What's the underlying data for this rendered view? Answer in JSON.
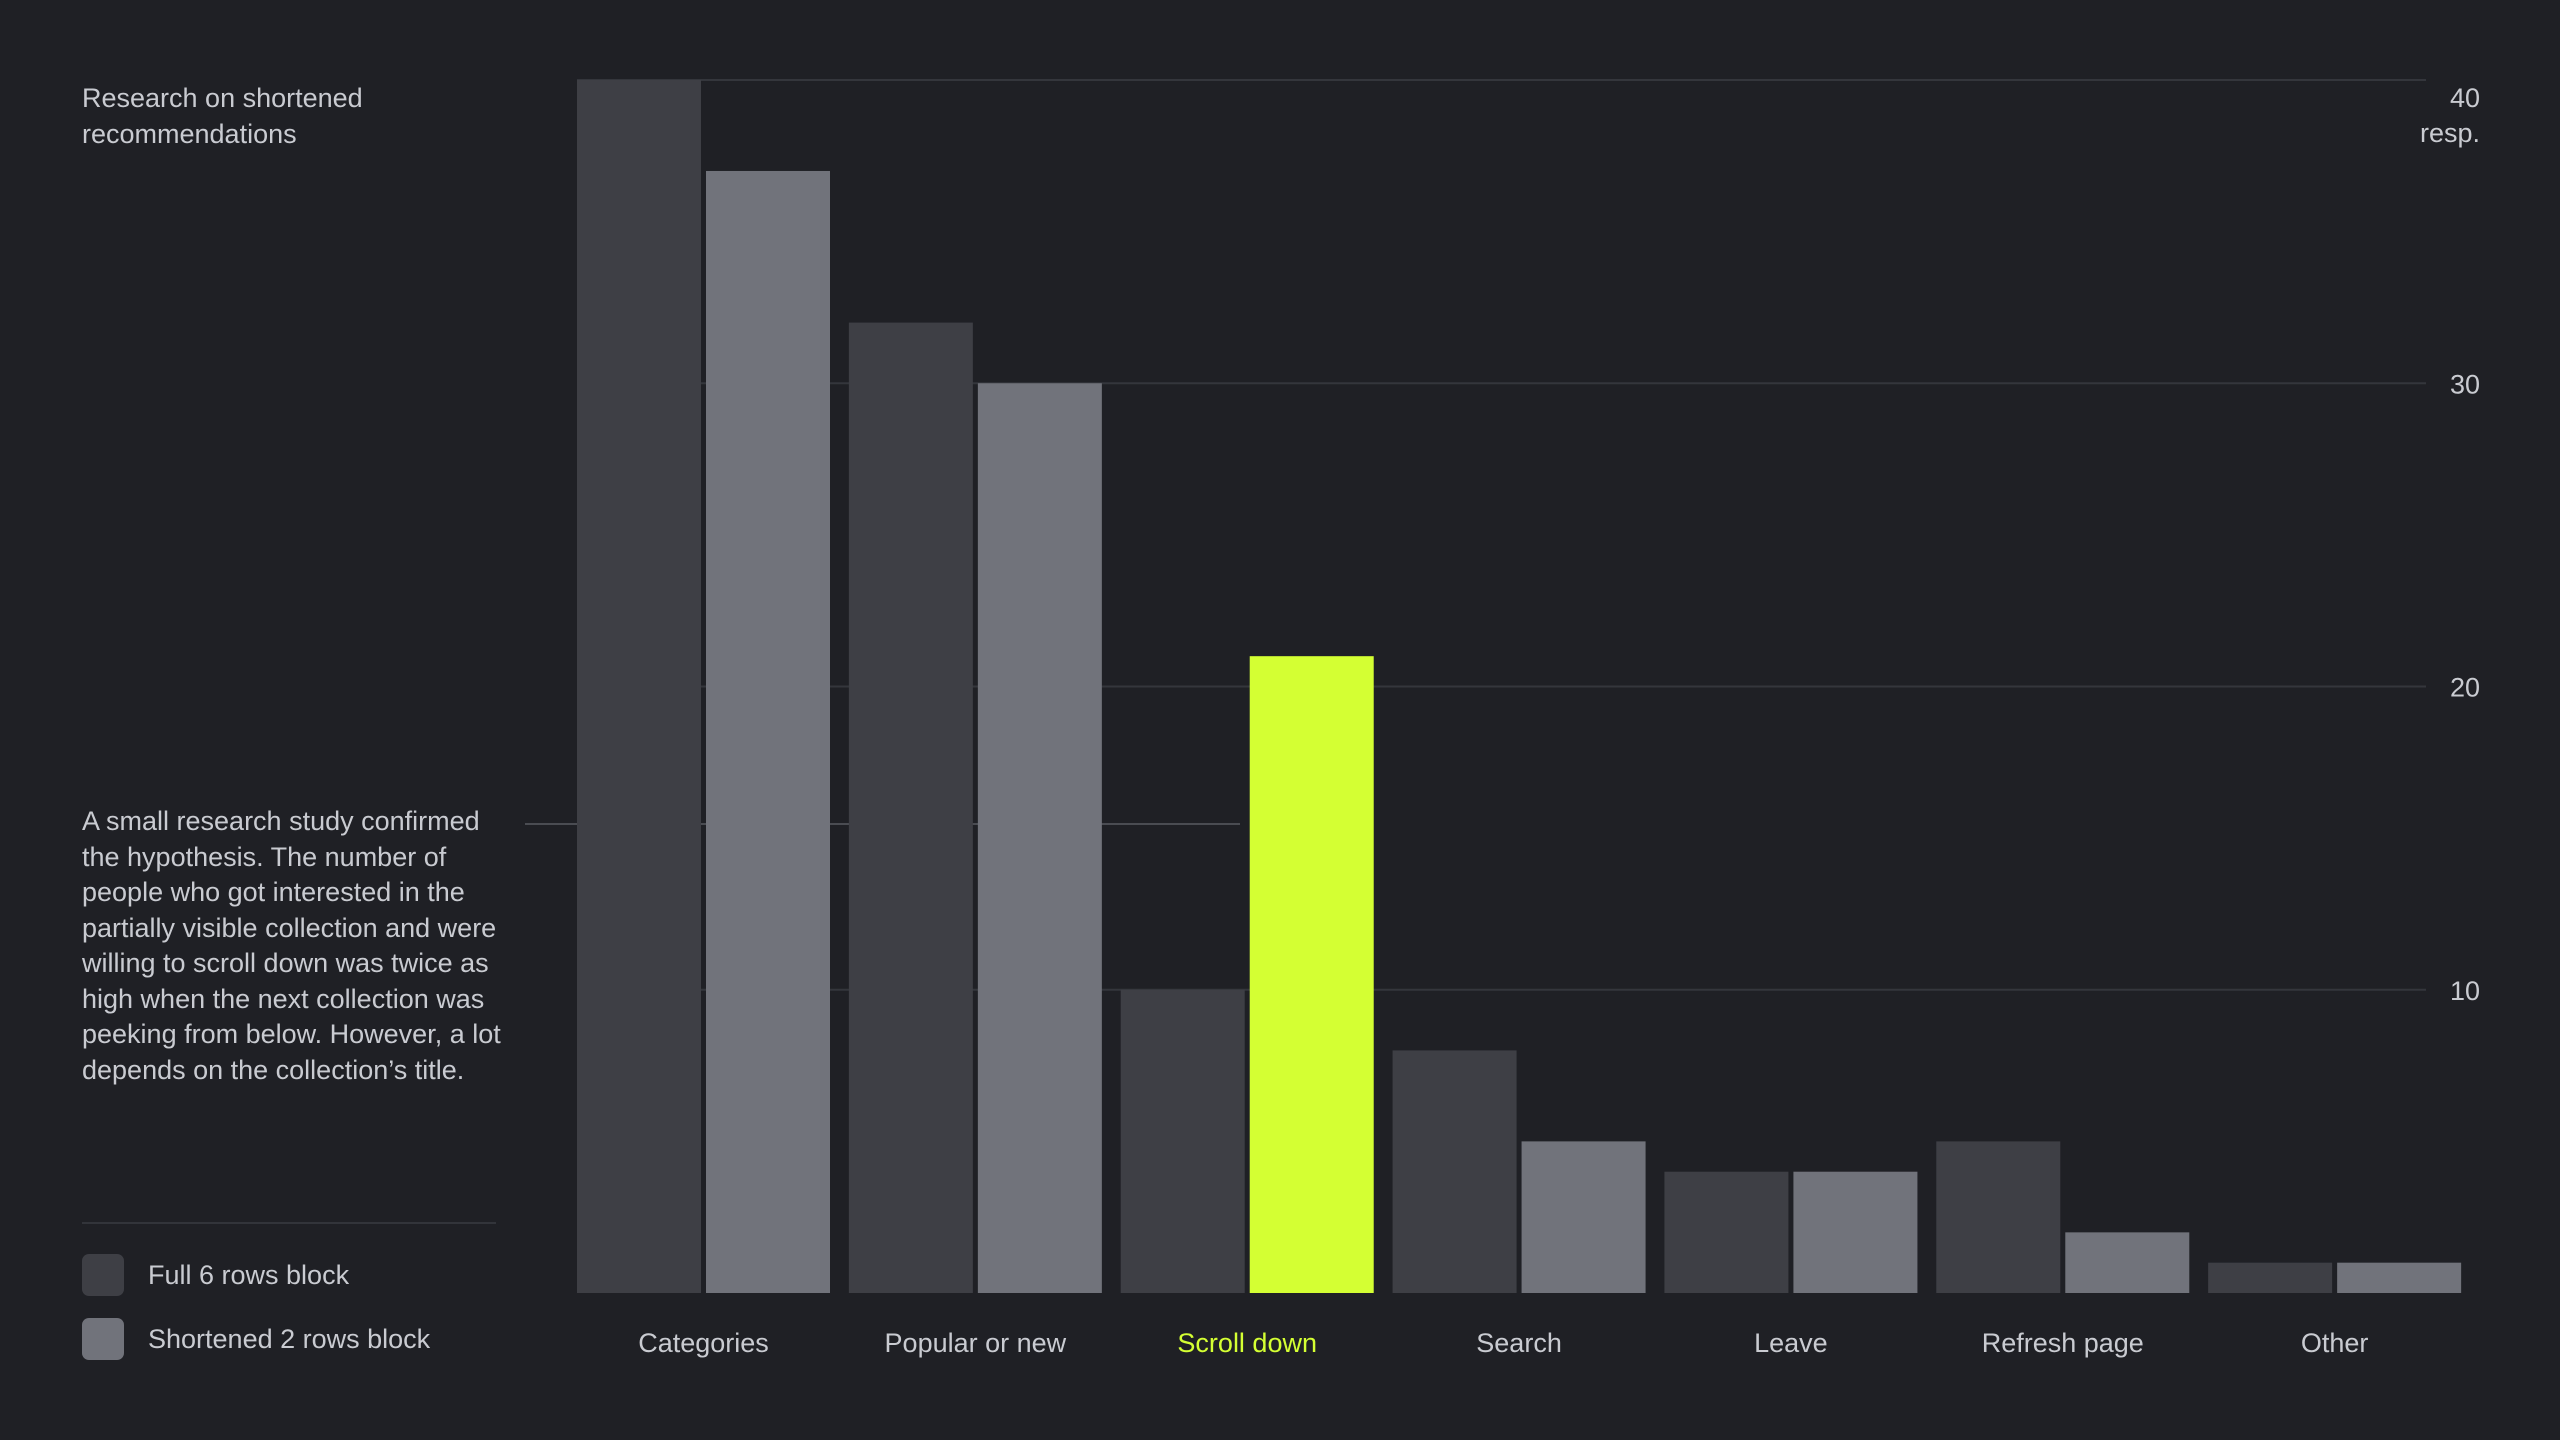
{
  "title": "Research on shortened recommendations",
  "description": "A small research study confirmed the hypothesis. The number of people who got interested in the partially visible collection and were willing to scroll down was twice as high when the next collection was peeking from below. However, a lot depends on the collection’s title.",
  "colors": {
    "background": "#1f2025",
    "full": "#3e3f45",
    "shortened": "#71737b",
    "highlight": "#d4ff33",
    "grid": "#34363c",
    "text": "#c9cbd1"
  },
  "legend": [
    {
      "label": "Full 6 rows block",
      "color": "#3e3f45"
    },
    {
      "label": "Shortened 2 rows block",
      "color": "#71737b"
    }
  ],
  "chart_data": {
    "type": "bar",
    "title": "Research on shortened recommendations",
    "ylabel": "resp.",
    "ylim": [
      0,
      40
    ],
    "yticks": [
      10,
      20,
      30,
      40
    ],
    "grid": true,
    "axis_position": "right",
    "categories": [
      "Categories",
      "Popular or new",
      "Scroll down",
      "Search",
      "Leave",
      "Refresh page",
      "Other"
    ],
    "highlight_category": "Scroll down",
    "series": [
      {
        "name": "Full 6 rows block",
        "values": [
          40,
          32,
          10,
          8,
          4,
          5,
          1
        ]
      },
      {
        "name": "Shortened 2 rows block",
        "values": [
          37,
          30,
          21,
          5,
          4,
          2,
          1
        ]
      }
    ]
  }
}
